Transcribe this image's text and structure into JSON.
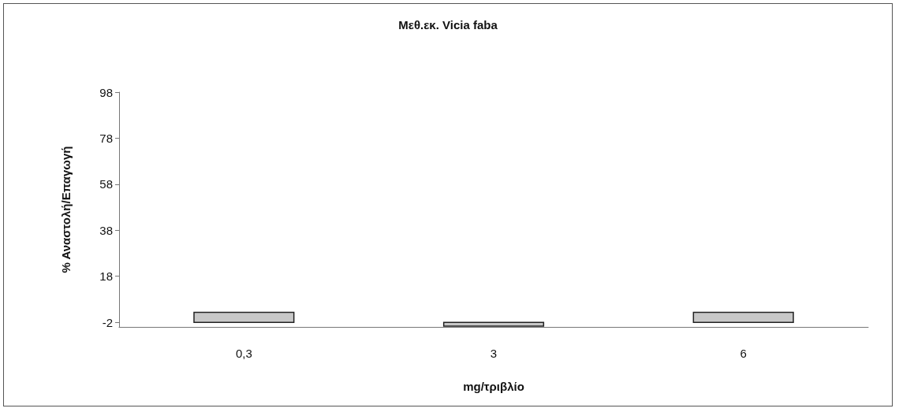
{
  "chart_data": {
    "type": "bar",
    "title": "Μεθ.εκ. Vicia faba",
    "xlabel": "mg/τριβλίο",
    "ylabel": "% Αναστολή/Επαγωγή",
    "categories": [
      "0,3",
      "3",
      "6"
    ],
    "values": [
      4.3,
      -1.7,
      4.3
    ],
    "base": [
      -2,
      -2,
      -2
    ],
    "color": "#c8c8c8",
    "ylim": [
      -4,
      98
    ],
    "yticks": [
      -2,
      18,
      38,
      58,
      78,
      98
    ],
    "grid": false
  }
}
